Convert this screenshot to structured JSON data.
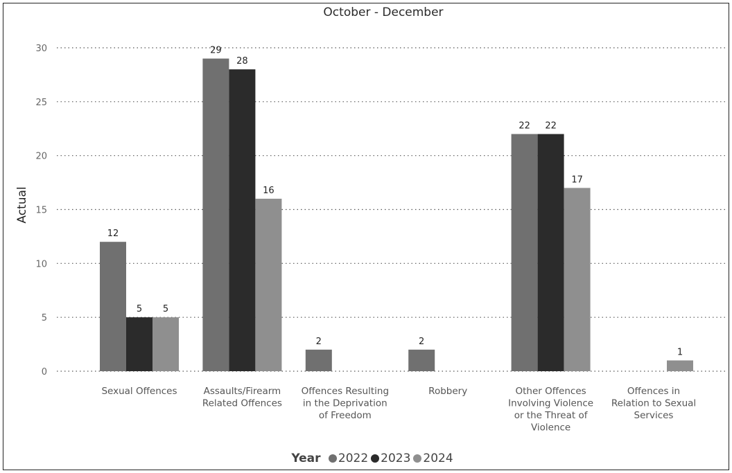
{
  "chart_data": {
    "type": "bar",
    "title": "October - December",
    "xlabel": "",
    "ylabel": "Actual",
    "ylim": [
      0,
      30
    ],
    "yticks": [
      0,
      5,
      10,
      15,
      20,
      25,
      30
    ],
    "grid": "horizontal dotted",
    "legend": {
      "title": "Year",
      "placement": "bottom"
    },
    "categories": [
      "Sexual Offences",
      "Assaults/Firearm Related Offences",
      "Offences Resulting in the Deprivation of Freedom",
      "Robbery",
      "Other Offences Involving Violence or the Threat of Violence",
      "Offences in Relation to Sexual Services"
    ],
    "category_lines": [
      [
        "Sexual Offences"
      ],
      [
        "Assaults/Firearm",
        "Related Offences"
      ],
      [
        "Offences Resulting",
        "in the Deprivation",
        "of Freedom"
      ],
      [
        "Robbery"
      ],
      [
        "Other Offences",
        "Involving Violence",
        "or the Threat of",
        "Violence"
      ],
      [
        "Offences in",
        "Relation to Sexual",
        "Services"
      ]
    ],
    "series": [
      {
        "name": "2022",
        "color": "#707070",
        "values": [
          12,
          29,
          2,
          2,
          22,
          null
        ]
      },
      {
        "name": "2023",
        "color": "#2b2b2b",
        "values": [
          5,
          28,
          null,
          null,
          22,
          null
        ]
      },
      {
        "name": "2024",
        "color": "#8f8f8f",
        "values": [
          5,
          16,
          null,
          null,
          17,
          1
        ]
      }
    ]
  }
}
